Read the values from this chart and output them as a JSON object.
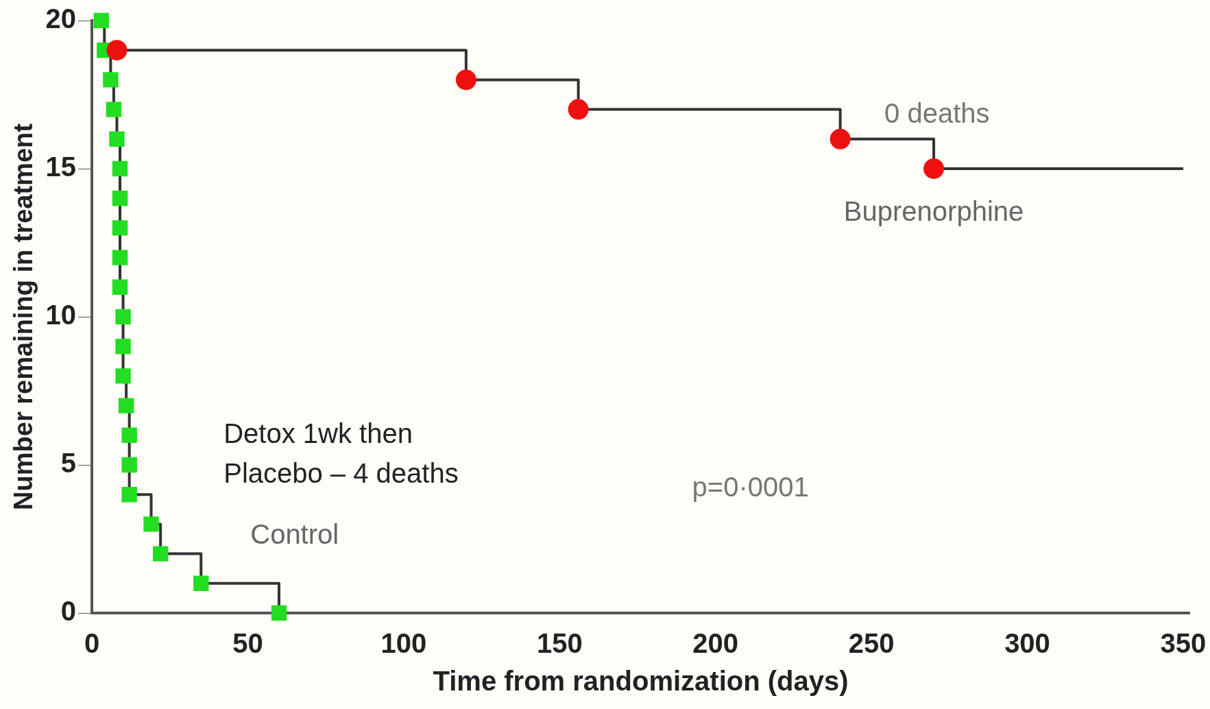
{
  "chart_data": {
    "type": "step",
    "xlabel": "Time from randomization (days)",
    "ylabel": "Number remaining in treatment",
    "xlim": [
      0,
      352
    ],
    "ylim": [
      0,
      20
    ],
    "xticks": [
      0,
      50,
      100,
      150,
      200,
      250,
      300,
      350
    ],
    "yticks": [
      0,
      5,
      10,
      15,
      20
    ],
    "grid": false,
    "legend": false,
    "series": [
      {
        "name": "Buprenorphine",
        "color": "#ee1111",
        "marker": "circle",
        "x": [
          8,
          120,
          156,
          240,
          270,
          350
        ],
        "values": [
          19,
          18,
          17,
          16,
          15,
          15
        ]
      },
      {
        "name": "Control",
        "color": "#22dd22",
        "marker": "square",
        "x": [
          3,
          4,
          6,
          7,
          8,
          9,
          9,
          9,
          9,
          9,
          10,
          10,
          10,
          11,
          12,
          12,
          12,
          19,
          22,
          35,
          60
        ],
        "values": [
          20,
          19,
          18,
          17,
          16,
          15,
          14,
          13,
          12,
          11,
          10,
          9,
          8,
          7,
          6,
          5,
          4,
          3,
          2,
          1,
          0
        ]
      }
    ],
    "annotations": [
      "0 deaths",
      "Detox 1wk then\nPlacebo – 4 deaths",
      "p=0·0001"
    ]
  }
}
